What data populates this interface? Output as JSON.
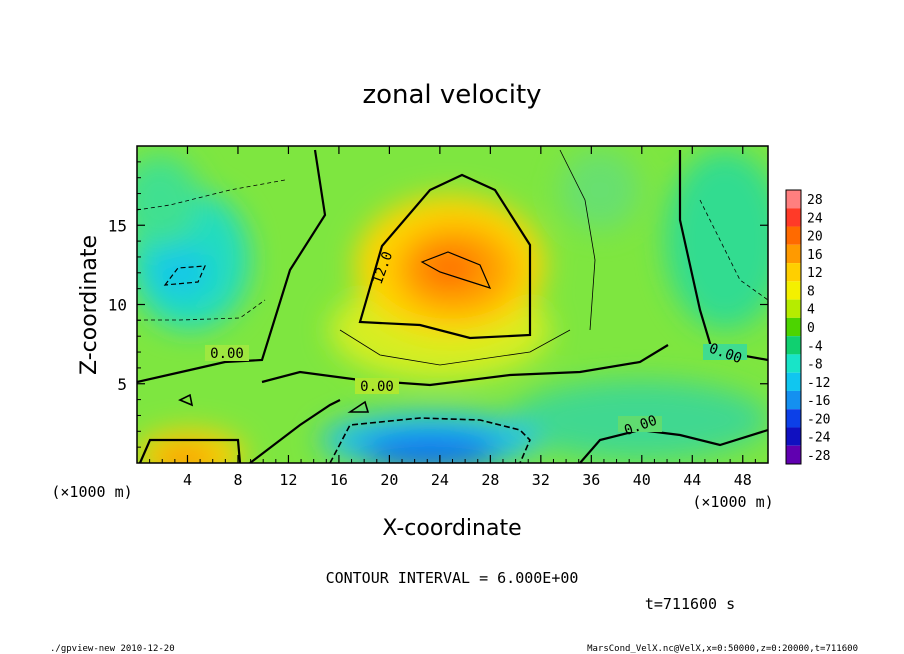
{
  "chart_data": {
    "type": "heatmap",
    "title": "zonal velocity",
    "xlabel": "X-coordinate",
    "ylabel": "Z-coordinate",
    "x_unit_left": "(×1000 m)",
    "x_unit_right": "(×1000 m)",
    "xlim": [
      0,
      50
    ],
    "ylim": [
      0,
      20
    ],
    "x_ticks": [
      4,
      8,
      12,
      16,
      20,
      24,
      28,
      32,
      36,
      40,
      44,
      48
    ],
    "y_ticks": [
      5,
      10,
      15
    ],
    "colorbar_levels": [
      28,
      24,
      20,
      16,
      12,
      8,
      4,
      0,
      -4,
      -8,
      -12,
      -16,
      -20,
      -24,
      -28
    ],
    "colorbar_colors": [
      "#ff7f7f",
      "#ff3a28",
      "#ff6a00",
      "#ff9a00",
      "#ffcf00",
      "#f4f000",
      "#b6ec00",
      "#4cd400",
      "#10d070",
      "#18e4c8",
      "#10c6f0",
      "#1490f0",
      "#0c40e8",
      "#1010c0",
      "#6000b0"
    ],
    "contour_labels": [
      "0.00",
      "0.00",
      "0.00",
      "0.00",
      "12.0"
    ],
    "contour_interval_text": "CONTOUR INTERVAL = 6.000E+00",
    "time_text": "t=711600 s",
    "features": [
      {
        "kind": "max",
        "x": 25,
        "z": 12.3,
        "value": 18
      },
      {
        "kind": "min",
        "x": 4,
        "z": 12,
        "value": -10
      },
      {
        "kind": "min",
        "x": 26,
        "z": 1,
        "value": -18
      },
      {
        "kind": "max",
        "x": 4,
        "z": 1,
        "value": 16
      }
    ]
  },
  "footer": {
    "left": "./gpview-new  2010-12-20",
    "right": "MarsCond_VelX.nc@VelX,x=0:50000,z=0:20000,t=711600"
  }
}
